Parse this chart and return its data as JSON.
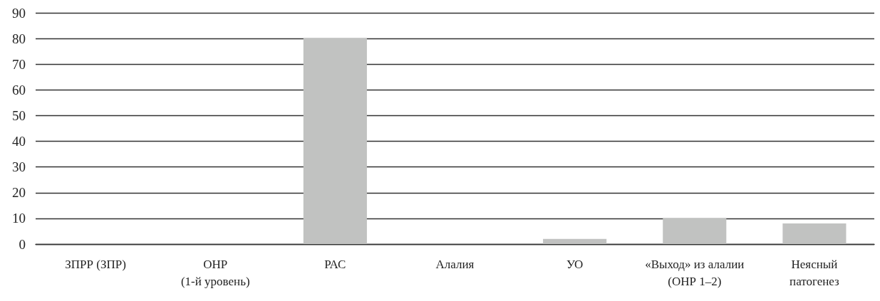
{
  "chart_data": {
    "type": "bar",
    "categories": [
      "ЗПРР (ЗПР)",
      "ОНР\n(1-й уровень)",
      "РАС",
      "Алалия",
      "УО",
      "«Выход» из алалии\n(ОНР 1–2)",
      "Неясный\nпатогенез"
    ],
    "values": [
      0,
      0,
      80,
      0,
      2,
      10,
      8
    ],
    "color": "#c1c2c1",
    "ylim": [
      0,
      90
    ],
    "yticks": [
      0,
      10,
      20,
      30,
      40,
      50,
      60,
      70,
      80,
      90
    ],
    "grid": "y"
  }
}
